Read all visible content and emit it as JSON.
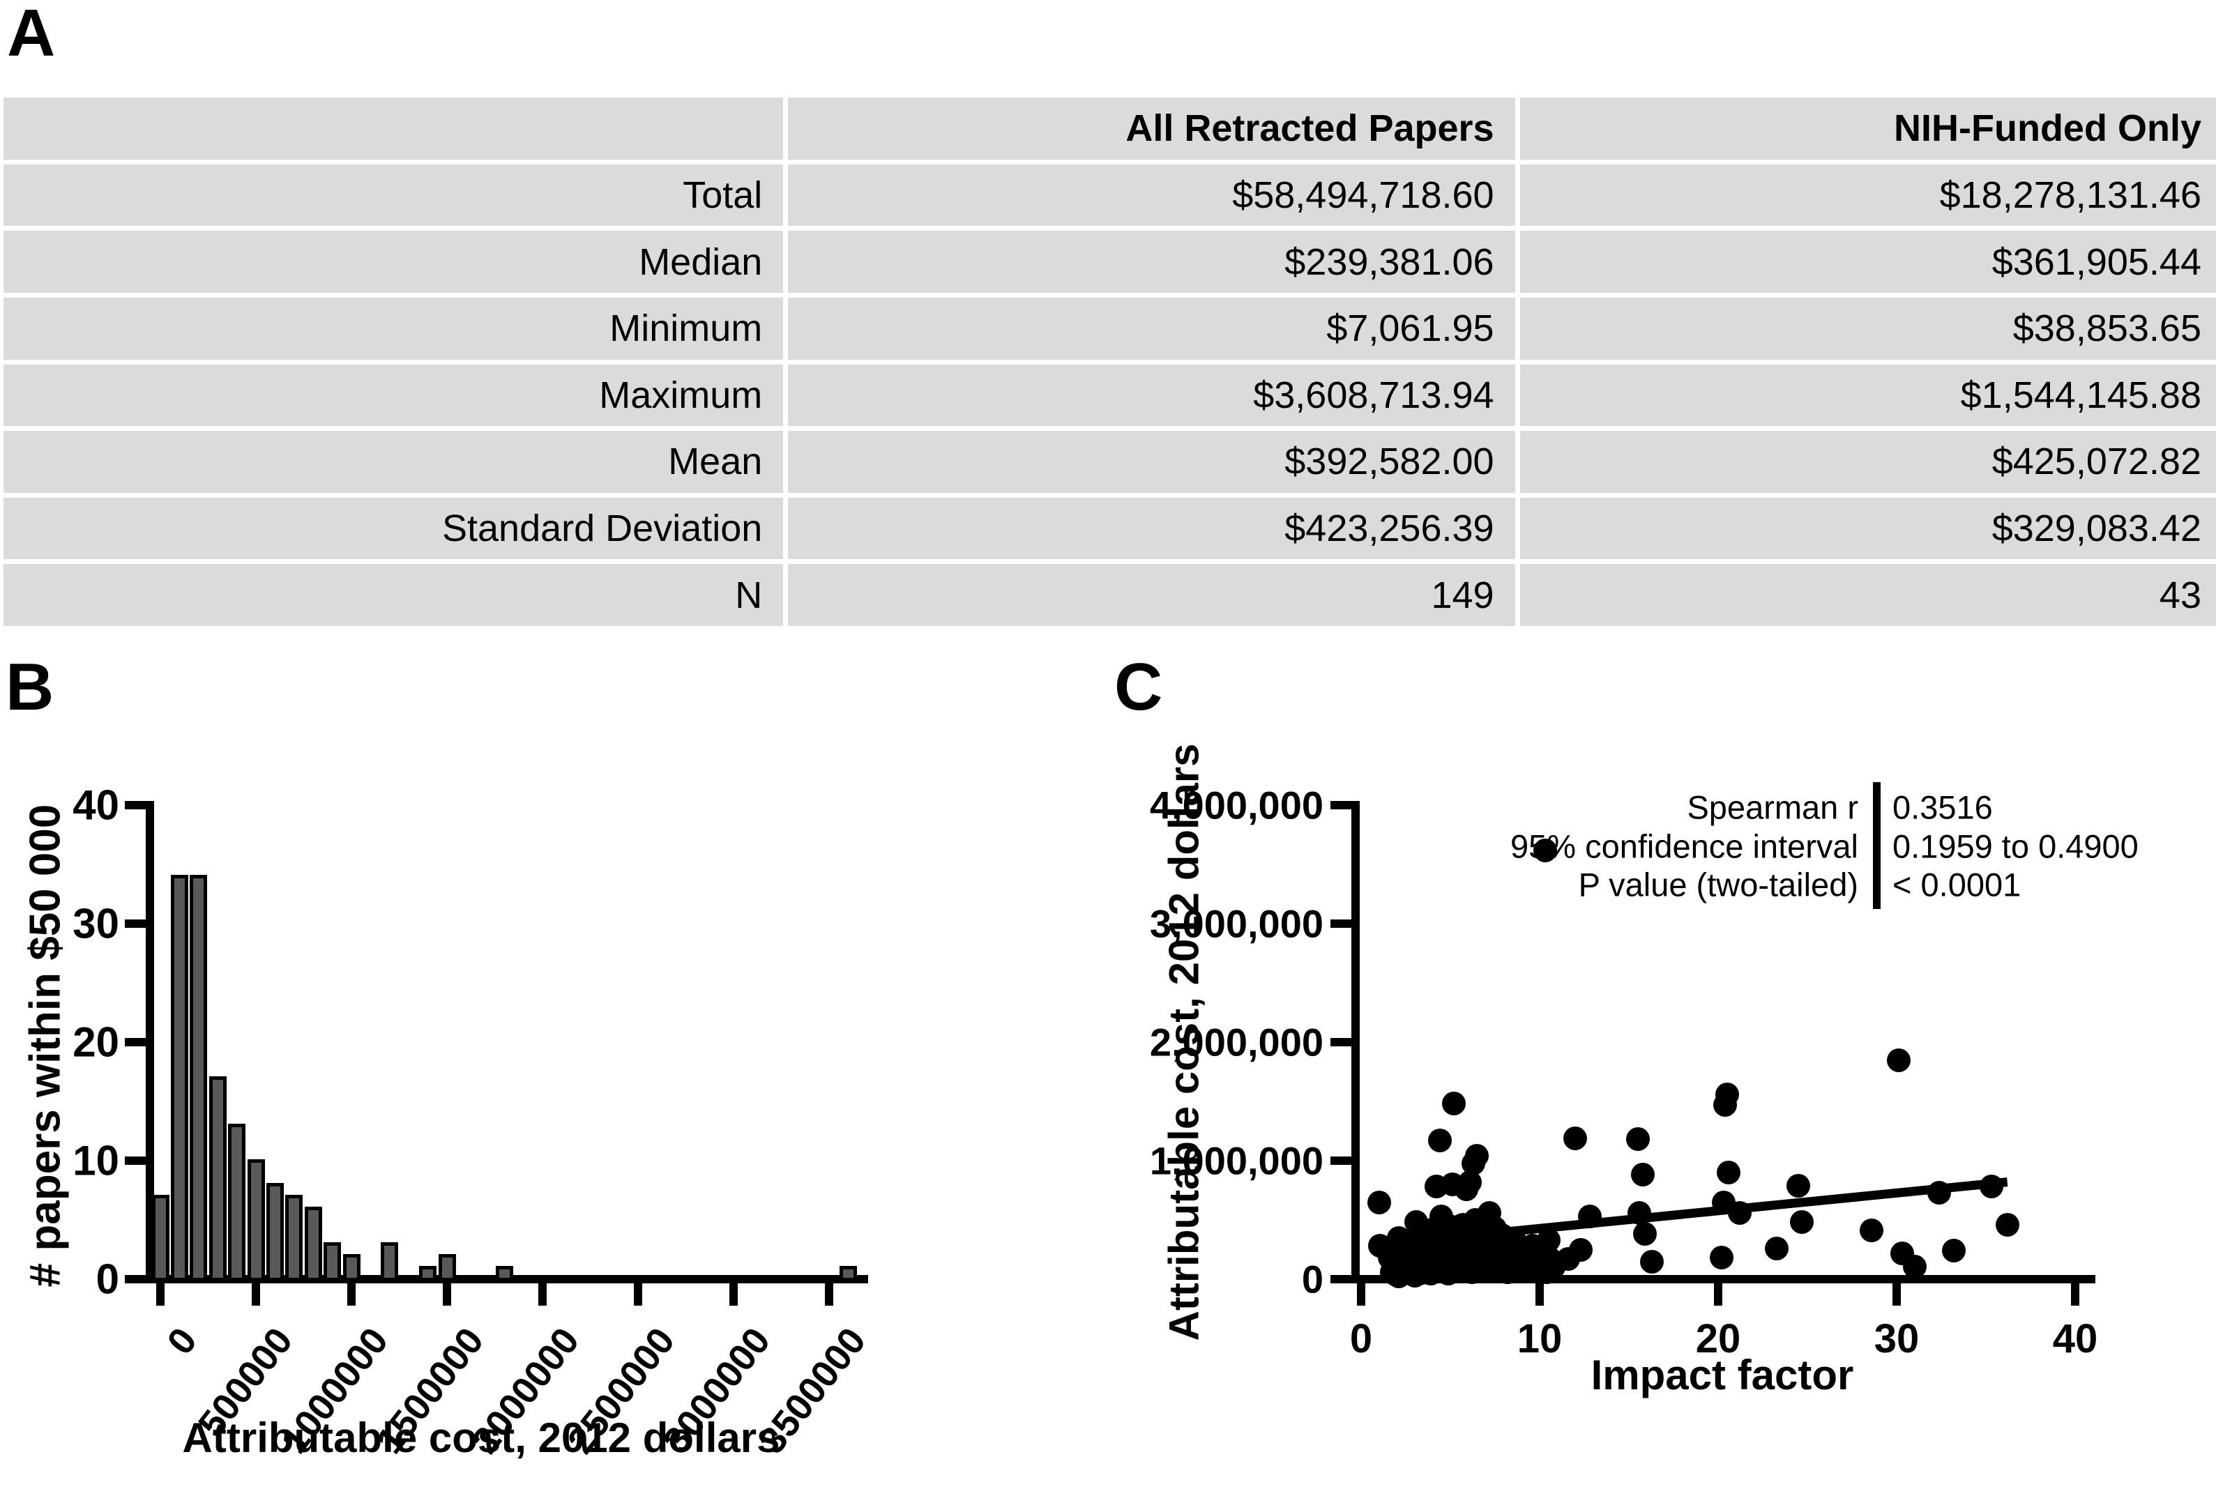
{
  "panels": {
    "a_label": "A",
    "b_label": "B",
    "c_label": "C"
  },
  "colors": {
    "axis": "#000000",
    "bar_fill": "#595959",
    "table_bg": "#dbdbdb",
    "dot": "#000000"
  },
  "table": {
    "headers": {
      "col1": "",
      "col2": "All Retracted Papers",
      "col3": "NIH-Funded Only"
    },
    "rows": [
      {
        "label": "Total",
        "all": "$58,494,718.60",
        "nih": "$18,278,131.46"
      },
      {
        "label": "Median",
        "all": "$239,381.06",
        "nih": "$361,905.44"
      },
      {
        "label": "Minimum",
        "all": "$7,061.95",
        "nih": "$38,853.65"
      },
      {
        "label": "Maximum",
        "all": "$3,608,713.94",
        "nih": "$1,544,145.88"
      },
      {
        "label": "Mean",
        "all": "$392,582.00",
        "nih": "$425,072.82"
      },
      {
        "label": "Standard Deviation",
        "all": "$423,256.39",
        "nih": "$329,083.42"
      },
      {
        "label": "N",
        "all": "149",
        "nih": "43"
      }
    ]
  },
  "chart_data": [
    {
      "type": "bar",
      "panel": "B",
      "title": "",
      "xlabel": "Attributable cost, 2012 dollars",
      "ylabel": "# papers within $50 000",
      "x_ticks": [
        0,
        500000,
        1000000,
        1500000,
        2000000,
        2500000,
        3000000,
        3500000
      ],
      "x_tick_labels": [
        "0",
        "500000",
        "1000000",
        "1500000",
        "2000000",
        "2500000",
        "3000000",
        "3500000"
      ],
      "y_ticks": [
        0,
        10,
        20,
        30,
        40
      ],
      "xlim": [
        -60000,
        3750000
      ],
      "ylim": [
        0,
        40
      ],
      "grid": false,
      "bin_width": 100000,
      "bars": [
        {
          "x": 0,
          "count": 7
        },
        {
          "x": 100000,
          "count": 34
        },
        {
          "x": 200000,
          "count": 34
        },
        {
          "x": 300000,
          "count": 17
        },
        {
          "x": 400000,
          "count": 13
        },
        {
          "x": 500000,
          "count": 10
        },
        {
          "x": 600000,
          "count": 8
        },
        {
          "x": 700000,
          "count": 7
        },
        {
          "x": 800000,
          "count": 6
        },
        {
          "x": 900000,
          "count": 3
        },
        {
          "x": 1000000,
          "count": 2
        },
        {
          "x": 1200000,
          "count": 3
        },
        {
          "x": 1400000,
          "count": 1
        },
        {
          "x": 1500000,
          "count": 2
        },
        {
          "x": 1800000,
          "count": 1
        },
        {
          "x": 3600000,
          "count": 1
        }
      ]
    },
    {
      "type": "scatter",
      "panel": "C",
      "title": "",
      "xlabel": "Impact factor",
      "ylabel": "Attributable cost, 2012 dollars",
      "x_ticks": [
        0,
        10,
        20,
        30,
        40
      ],
      "x_tick_labels": [
        "0",
        "10",
        "20",
        "30",
        "40"
      ],
      "y_ticks": [
        0,
        1000000,
        2000000,
        3000000,
        4000000
      ],
      "y_tick_labels": [
        "0",
        "1,000,000",
        "2,000,000",
        "3,000,000",
        "4,000,000"
      ],
      "xlim": [
        -0.5,
        41
      ],
      "ylim": [
        0,
        4000000
      ],
      "grid": false,
      "legend_position": "none",
      "trend_line": {
        "x1": 0.8,
        "y1": 290000,
        "x2": 36.2,
        "y2": 820000
      },
      "stats": {
        "rows": [
          {
            "label": "Spearman r",
            "value": "0.3516"
          },
          {
            "label": "95% confidence interval",
            "value": "0.1959 to 0.4900"
          },
          {
            "label": "P value (two-tailed)",
            "value": "< 0.0001"
          }
        ]
      },
      "points": [
        [
          10.3,
          3620000
        ],
        [
          30.1,
          1850000
        ],
        [
          20.5,
          1560000
        ],
        [
          20.4,
          1470000
        ],
        [
          5.2,
          1480000
        ],
        [
          4.4,
          1170000
        ],
        [
          12,
          1190000
        ],
        [
          15.5,
          1180000
        ],
        [
          6.5,
          1040000
        ],
        [
          6.3,
          975000
        ],
        [
          20.6,
          900000
        ],
        [
          15.8,
          880000
        ],
        [
          24.5,
          790000
        ],
        [
          32.4,
          730000
        ],
        [
          35.3,
          780000
        ],
        [
          4.2,
          780000
        ],
        [
          5.1,
          800000
        ],
        [
          6.1,
          820000
        ],
        [
          5.9,
          760000
        ],
        [
          20.3,
          650000
        ],
        [
          21.2,
          560000
        ],
        [
          15.6,
          560000
        ],
        [
          15.9,
          380000
        ],
        [
          23.3,
          260000
        ],
        [
          24.7,
          480000
        ],
        [
          28.6,
          410000
        ],
        [
          30.3,
          220000
        ],
        [
          31,
          105000
        ],
        [
          33.2,
          240000
        ],
        [
          36.2,
          460000
        ],
        [
          20.2,
          180000
        ],
        [
          16.3,
          150000
        ],
        [
          12.3,
          250000
        ],
        [
          11.6,
          170000
        ],
        [
          1,
          650000
        ],
        [
          1.05,
          280000
        ],
        [
          12.8,
          530000
        ],
        [
          1.6,
          180000
        ],
        [
          1.7,
          60000
        ],
        [
          1.8,
          120000
        ],
        [
          1.9,
          40000
        ],
        [
          2,
          95000
        ],
        [
          2,
          230000
        ],
        [
          2.1,
          25000
        ],
        [
          2.2,
          150000
        ],
        [
          2.3,
          75000
        ],
        [
          2.3,
          200000
        ],
        [
          2.4,
          50000
        ],
        [
          2.5,
          130000
        ],
        [
          2.5,
          320000
        ],
        [
          2.6,
          90000
        ],
        [
          2.7,
          180000
        ],
        [
          2.8,
          45000
        ],
        [
          2.8,
          250000
        ],
        [
          2.9,
          110000
        ],
        [
          3,
          30000
        ],
        [
          3,
          210000
        ],
        [
          3.1,
          150000
        ],
        [
          3.2,
          70000
        ],
        [
          3.2,
          290000
        ],
        [
          3.3,
          170000
        ],
        [
          3.4,
          55000
        ],
        [
          3.4,
          390000
        ],
        [
          3.5,
          110000
        ],
        [
          3.6,
          230000
        ],
        [
          3.7,
          85000
        ],
        [
          3.7,
          300000
        ],
        [
          3.8,
          160000
        ],
        [
          3.9,
          45000
        ],
        [
          3.9,
          260000
        ],
        [
          4,
          120000
        ],
        [
          4,
          420000
        ],
        [
          4.1,
          200000
        ],
        [
          4.2,
          65000
        ],
        [
          4.3,
          310000
        ],
        [
          4.3,
          140000
        ],
        [
          4.4,
          90000
        ],
        [
          4.5,
          240000
        ],
        [
          4.5,
          530000
        ],
        [
          4.6,
          170000
        ],
        [
          4.7,
          380000
        ],
        [
          4.7,
          100000
        ],
        [
          4.8,
          280000
        ],
        [
          4.9,
          50000
        ],
        [
          4.9,
          210000
        ],
        [
          5,
          330000
        ],
        [
          5,
          150000
        ],
        [
          5.1,
          440000
        ],
        [
          5.2,
          95000
        ],
        [
          5.2,
          250000
        ],
        [
          5.3,
          180000
        ],
        [
          5.4,
          400000
        ],
        [
          5.4,
          120000
        ],
        [
          5.5,
          300000
        ],
        [
          5.5,
          70000
        ],
        [
          5.6,
          220000
        ],
        [
          5.7,
          460000
        ],
        [
          5.7,
          140000
        ],
        [
          5.8,
          350000
        ],
        [
          5.8,
          190000
        ],
        [
          5.9,
          100000
        ],
        [
          6,
          270000
        ],
        [
          6,
          420000
        ],
        [
          6.1,
          160000
        ],
        [
          6.2,
          310000
        ],
        [
          6.2,
          60000
        ],
        [
          6.3,
          230000
        ],
        [
          6.4,
          130000
        ],
        [
          6.4,
          500000
        ],
        [
          6.5,
          190000
        ],
        [
          6.6,
          360000
        ],
        [
          6.6,
          90000
        ],
        [
          6.7,
          280000
        ],
        [
          6.8,
          150000
        ],
        [
          6.8,
          470000
        ],
        [
          6.9,
          210000
        ],
        [
          7,
          110000
        ],
        [
          7,
          340000
        ],
        [
          7.1,
          250000
        ],
        [
          7.2,
          180000
        ],
        [
          7.2,
          560000
        ],
        [
          7.3,
          80000
        ],
        [
          7.4,
          300000
        ],
        [
          7.5,
          200000
        ],
        [
          7.5,
          430000
        ],
        [
          7.6,
          140000
        ],
        [
          7.7,
          260000
        ],
        [
          7.8,
          100000
        ],
        [
          7.9,
          370000
        ],
        [
          8,
          190000
        ],
        [
          8.1,
          290000
        ],
        [
          8.2,
          60000
        ],
        [
          8.3,
          220000
        ],
        [
          8.5,
          160000
        ],
        [
          8.6,
          330000
        ],
        [
          8.8,
          120000
        ],
        [
          9,
          240000
        ],
        [
          9.2,
          180000
        ],
        [
          9.4,
          90000
        ],
        [
          9.6,
          280000
        ],
        [
          9.8,
          150000
        ],
        [
          10,
          210000
        ],
        [
          10.2,
          120000
        ],
        [
          10.4,
          60000
        ],
        [
          10.5,
          330000
        ],
        [
          10.6,
          170000
        ],
        [
          10.8,
          100000
        ],
        [
          2.1,
          350000
        ],
        [
          3.1,
          480000
        ]
      ]
    }
  ]
}
